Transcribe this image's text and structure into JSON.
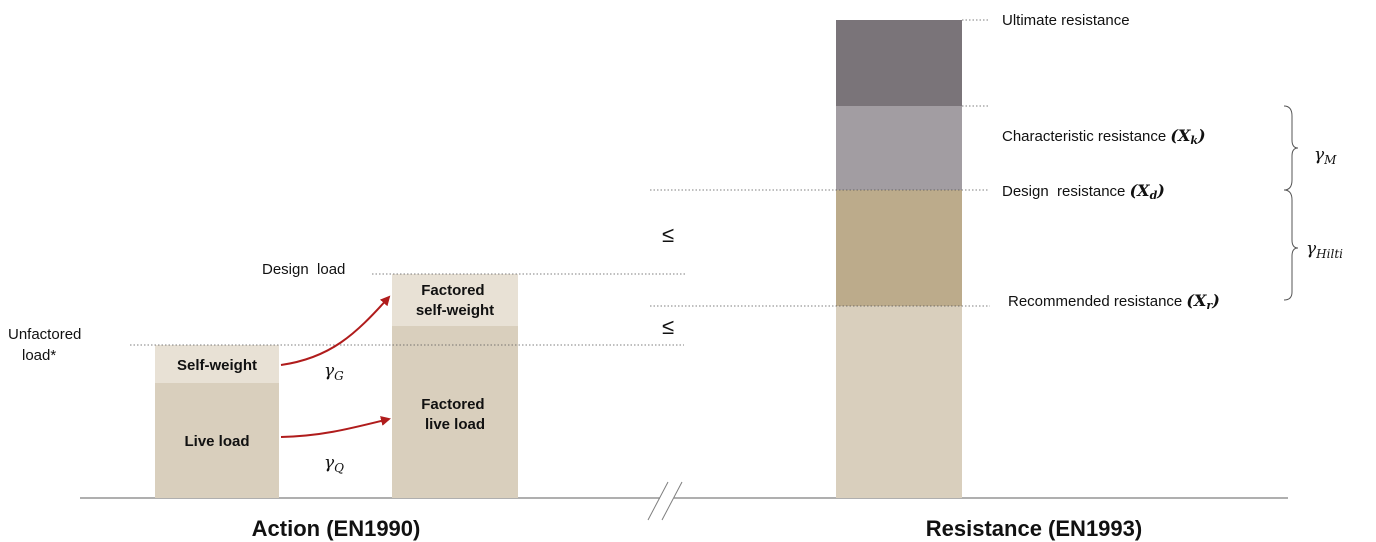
{
  "action": {
    "title": "Action (EN1990)",
    "unfactored_label_line1": "Unfactored",
    "unfactored_label_line2": "load*",
    "design_load_label": "Design  load",
    "self_weight_label": "Self-weight",
    "live_load_label": "Live load",
    "factored_self_weight_line1": "Factored",
    "factored_self_weight_line2": "self-weight",
    "factored_live_load_line1": "Factored",
    "factored_live_load_line2": "live load",
    "gamma_g": {
      "symbol": "γ",
      "sub": "G"
    },
    "gamma_q": {
      "symbol": "γ",
      "sub": "Q"
    }
  },
  "comparison": {
    "leq_upper": "≤",
    "leq_lower": "≤"
  },
  "resistance": {
    "title": "Resistance (EN1993)",
    "ultimate_label": "Ultimate resistance",
    "characteristic_label": "Characteristic resistance ",
    "characteristic_symbol": {
      "symbol": "X",
      "sub": "k"
    },
    "design_label": "Design  resistance ",
    "design_symbol": {
      "symbol": "X",
      "sub": "d"
    },
    "recommended_label": "Recommended resistance ",
    "recommended_symbol": {
      "symbol": "X",
      "sub": "r"
    },
    "gamma_m": {
      "symbol": "γ",
      "sub": "M"
    },
    "gamma_hilti": {
      "symbol": "γ",
      "sub": "Hilti"
    }
  },
  "colors": {
    "base_beige": "#d9cfbd",
    "light_beige": "#e8e1d5",
    "tan": "#bcab8b",
    "light_gray": "#a29da2",
    "dark_gray": "#7a7479",
    "arrow_red": "#b01c1c",
    "axis": "#7f7f7f",
    "dotted": "#555555",
    "text": "#111111"
  }
}
